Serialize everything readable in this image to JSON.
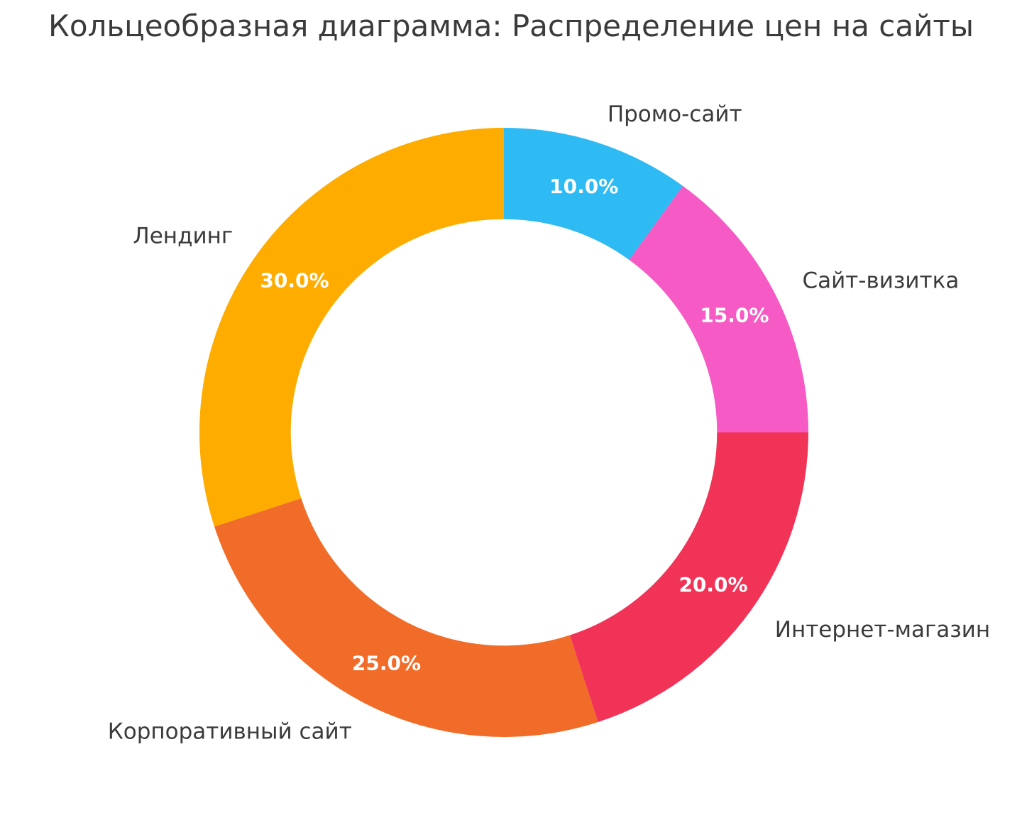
{
  "page": {
    "background_color": "#ffffff",
    "text_color": "#3b3b3b"
  },
  "chart_data": {
    "type": "pie",
    "subtype": "donut",
    "title": "Кольцеобразная диаграмма: Распределение цен на сайты",
    "legend": "none",
    "grid": "off",
    "start_angle_deg": 90,
    "direction": "clockwise",
    "donut_hole_ratio": 0.7,
    "categories": [
      "Промо-сайт",
      "Сайт-визитка",
      "Интернет-магазин",
      "Корпоративный сайт",
      "Лендинг"
    ],
    "values": [
      10.0,
      15.0,
      20.0,
      25.0,
      30.0
    ],
    "autopct_labels": [
      "10.0%",
      "15.0%",
      "20.0%",
      "25.0%",
      "30.0%"
    ],
    "colors": [
      "#2ebaf2",
      "#f65ac4",
      "#f23358",
      "#f26c29",
      "#fead00"
    ],
    "pct_label_color": "#ffffff",
    "category_label_color": "#3b3b3b"
  }
}
